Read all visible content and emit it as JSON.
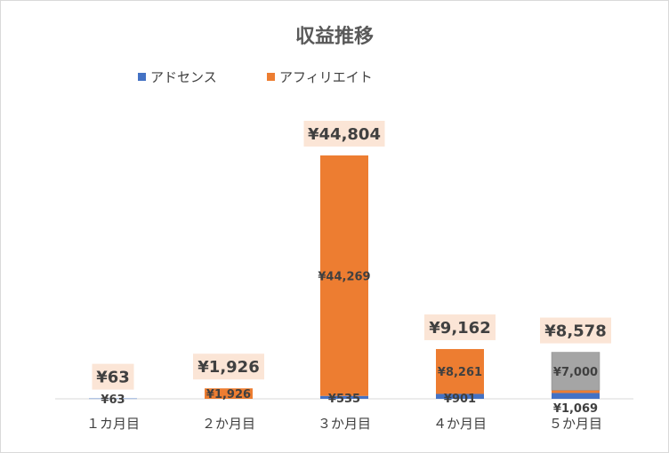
{
  "chart_data": {
    "type": "bar",
    "title": "収益推移",
    "stacked": true,
    "categories": [
      "１カ月目",
      "２か月目",
      "３か月目",
      "４か月目",
      "５か月目"
    ],
    "series": [
      {
        "name": "アドセンス",
        "color": "#4472C4",
        "values": [
          63,
          0,
          535,
          901,
          1069
        ],
        "labels": [
          "¥63",
          "",
          "¥535",
          "¥901",
          "¥1,069"
        ]
      },
      {
        "name": "アフィリエイト",
        "color": "#ED7D31",
        "values": [
          0,
          1926,
          44269,
          8261,
          509
        ],
        "labels": [
          "",
          "¥1,926",
          "¥44,269",
          "¥8,261",
          ""
        ]
      },
      {
        "name": "",
        "color": "#A5A5A5",
        "values": [
          0,
          0,
          0,
          0,
          7000
        ],
        "labels": [
          "",
          "",
          "",
          "",
          "¥7,000"
        ]
      }
    ],
    "totals": [
      63,
      1926,
      44804,
      9162,
      8578
    ],
    "total_labels": [
      "¥63",
      "¥1,926",
      "¥44,804",
      "¥9,162",
      "¥8,578"
    ],
    "ylim": [
      0,
      46000
    ],
    "grid": false,
    "legend": "top"
  }
}
